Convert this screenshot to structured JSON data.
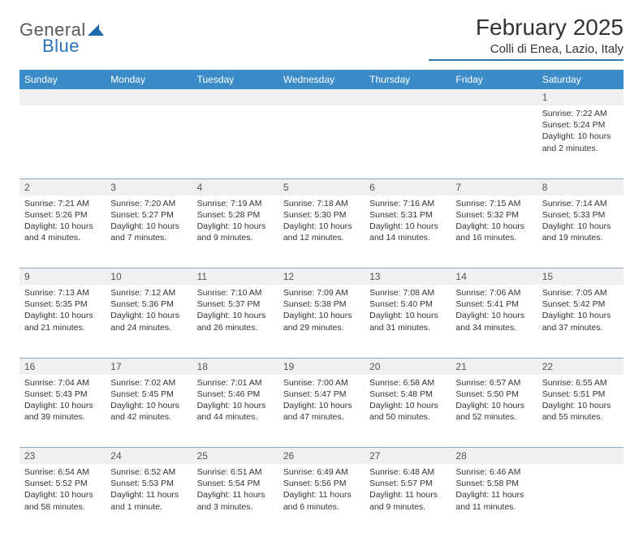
{
  "brand": {
    "part1": "General",
    "part2": "Blue"
  },
  "title": "February 2025",
  "location": "Colli di Enea, Lazio, Italy",
  "colors": {
    "header_bg": "#3b8bc8",
    "header_text": "#ffffff",
    "accent": "#2a7ab8",
    "daynum_bg": "#eef0f1",
    "border": "#8aa8bf",
    "text": "#333333",
    "logo_gray": "#5a5a5a",
    "logo_blue": "#2a6fb5"
  },
  "weekdays": [
    "Sunday",
    "Monday",
    "Tuesday",
    "Wednesday",
    "Thursday",
    "Friday",
    "Saturday"
  ],
  "weeks": [
    {
      "nums": [
        "",
        "",
        "",
        "",
        "",
        "",
        "1"
      ],
      "cells": [
        null,
        null,
        null,
        null,
        null,
        null,
        {
          "sunrise": "7:22 AM",
          "sunset": "5:24 PM",
          "daylight": "10 hours and 2 minutes."
        }
      ]
    },
    {
      "nums": [
        "2",
        "3",
        "4",
        "5",
        "6",
        "7",
        "8"
      ],
      "cells": [
        {
          "sunrise": "7:21 AM",
          "sunset": "5:26 PM",
          "daylight": "10 hours and 4 minutes."
        },
        {
          "sunrise": "7:20 AM",
          "sunset": "5:27 PM",
          "daylight": "10 hours and 7 minutes."
        },
        {
          "sunrise": "7:19 AM",
          "sunset": "5:28 PM",
          "daylight": "10 hours and 9 minutes."
        },
        {
          "sunrise": "7:18 AM",
          "sunset": "5:30 PM",
          "daylight": "10 hours and 12 minutes."
        },
        {
          "sunrise": "7:16 AM",
          "sunset": "5:31 PM",
          "daylight": "10 hours and 14 minutes."
        },
        {
          "sunrise": "7:15 AM",
          "sunset": "5:32 PM",
          "daylight": "10 hours and 16 minutes."
        },
        {
          "sunrise": "7:14 AM",
          "sunset": "5:33 PM",
          "daylight": "10 hours and 19 minutes."
        }
      ]
    },
    {
      "nums": [
        "9",
        "10",
        "11",
        "12",
        "13",
        "14",
        "15"
      ],
      "cells": [
        {
          "sunrise": "7:13 AM",
          "sunset": "5:35 PM",
          "daylight": "10 hours and 21 minutes."
        },
        {
          "sunrise": "7:12 AM",
          "sunset": "5:36 PM",
          "daylight": "10 hours and 24 minutes."
        },
        {
          "sunrise": "7:10 AM",
          "sunset": "5:37 PM",
          "daylight": "10 hours and 26 minutes."
        },
        {
          "sunrise": "7:09 AM",
          "sunset": "5:38 PM",
          "daylight": "10 hours and 29 minutes."
        },
        {
          "sunrise": "7:08 AM",
          "sunset": "5:40 PM",
          "daylight": "10 hours and 31 minutes."
        },
        {
          "sunrise": "7:06 AM",
          "sunset": "5:41 PM",
          "daylight": "10 hours and 34 minutes."
        },
        {
          "sunrise": "7:05 AM",
          "sunset": "5:42 PM",
          "daylight": "10 hours and 37 minutes."
        }
      ]
    },
    {
      "nums": [
        "16",
        "17",
        "18",
        "19",
        "20",
        "21",
        "22"
      ],
      "cells": [
        {
          "sunrise": "7:04 AM",
          "sunset": "5:43 PM",
          "daylight": "10 hours and 39 minutes."
        },
        {
          "sunrise": "7:02 AM",
          "sunset": "5:45 PM",
          "daylight": "10 hours and 42 minutes."
        },
        {
          "sunrise": "7:01 AM",
          "sunset": "5:46 PM",
          "daylight": "10 hours and 44 minutes."
        },
        {
          "sunrise": "7:00 AM",
          "sunset": "5:47 PM",
          "daylight": "10 hours and 47 minutes."
        },
        {
          "sunrise": "6:58 AM",
          "sunset": "5:48 PM",
          "daylight": "10 hours and 50 minutes."
        },
        {
          "sunrise": "6:57 AM",
          "sunset": "5:50 PM",
          "daylight": "10 hours and 52 minutes."
        },
        {
          "sunrise": "6:55 AM",
          "sunset": "5:51 PM",
          "daylight": "10 hours and 55 minutes."
        }
      ]
    },
    {
      "nums": [
        "23",
        "24",
        "25",
        "26",
        "27",
        "28",
        ""
      ],
      "cells": [
        {
          "sunrise": "6:54 AM",
          "sunset": "5:52 PM",
          "daylight": "10 hours and 58 minutes."
        },
        {
          "sunrise": "6:52 AM",
          "sunset": "5:53 PM",
          "daylight": "11 hours and 1 minute."
        },
        {
          "sunrise": "6:51 AM",
          "sunset": "5:54 PM",
          "daylight": "11 hours and 3 minutes."
        },
        {
          "sunrise": "6:49 AM",
          "sunset": "5:56 PM",
          "daylight": "11 hours and 6 minutes."
        },
        {
          "sunrise": "6:48 AM",
          "sunset": "5:57 PM",
          "daylight": "11 hours and 9 minutes."
        },
        {
          "sunrise": "6:46 AM",
          "sunset": "5:58 PM",
          "daylight": "11 hours and 11 minutes."
        },
        null
      ]
    }
  ],
  "labels": {
    "sunrise": "Sunrise:",
    "sunset": "Sunset:",
    "daylight": "Daylight:"
  }
}
